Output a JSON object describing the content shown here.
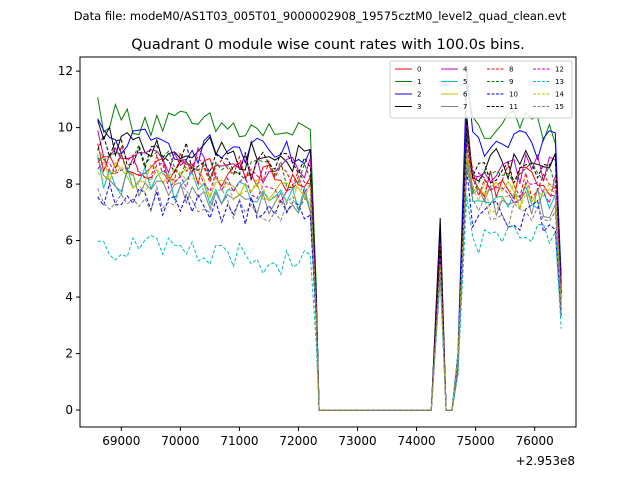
{
  "chart_data": {
    "type": "line",
    "suptitle": "Data file: modeM0/AS1T03_005T01_9000002908_19575cztM0_level2_quad_clean.evt",
    "title": "Quadrant 0 module wise count rates with 100.0s bins.",
    "xlabel": "",
    "ylabel": "",
    "x_offset_label": "+2.953e8",
    "xlim": [
      68300,
      76700
    ],
    "ylim": [
      -0.6,
      12.5
    ],
    "x_ticks": [
      69000,
      70000,
      71000,
      72000,
      73000,
      74000,
      75000,
      76000
    ],
    "x_tick_labels": [
      "69000",
      "70000",
      "71000",
      "72000",
      "73000",
      "74000",
      "75000",
      "76000"
    ],
    "y_ticks": [
      0,
      2,
      4,
      6,
      8,
      10,
      12
    ],
    "y_tick_labels": [
      "0",
      "2",
      "4",
      "6",
      "8",
      "10",
      "12"
    ],
    "legend_position": "top-right",
    "segments": {
      "seg1": [
        68600,
        72200
      ],
      "gap": [
        72350,
        74300
      ],
      "spike": 74400,
      "seg2": [
        74850,
        76450
      ],
      "step": 100
    },
    "series": [
      {
        "name": "0",
        "color": "#ff0000",
        "dash": "solid",
        "mean1": 8.2,
        "mean2": 8.0,
        "spike": 5.6,
        "peak": 9.7
      },
      {
        "name": "1",
        "color": "#008000",
        "dash": "solid",
        "mean1": 9.8,
        "mean2": 10.0,
        "spike": 5.9,
        "peak": 11.5
      },
      {
        "name": "2",
        "color": "#0000ff",
        "dash": "solid",
        "mean1": 9.0,
        "mean2": 9.3,
        "spike": 6.3,
        "peak": 12.0
      },
      {
        "name": "3",
        "color": "#000000",
        "dash": "solid",
        "mean1": 8.9,
        "mean2": 8.7,
        "spike": 6.8,
        "peak": 10.4
      },
      {
        "name": "4",
        "color": "#bf00bf",
        "dash": "solid",
        "mean1": 8.5,
        "mean2": 8.6,
        "spike": 5.9,
        "peak": 10.1
      },
      {
        "name": "5",
        "color": "#00bfbf",
        "dash": "solid",
        "mean1": 7.6,
        "mean2": 7.5,
        "spike": 5.3,
        "peak": 9.0
      },
      {
        "name": "6",
        "color": "#bfbf00",
        "dash": "solid",
        "mean1": 7.8,
        "mean2": 7.7,
        "spike": 5.2,
        "peak": 9.2
      },
      {
        "name": "7",
        "color": "#808080",
        "dash": "solid",
        "mean1": 7.4,
        "mean2": 7.4,
        "spike": 5.0,
        "peak": 8.8
      },
      {
        "name": "8",
        "color": "#ff0000",
        "dash": "dashed",
        "mean1": 8.3,
        "mean2": 8.1,
        "spike": 5.7,
        "peak": 9.6
      },
      {
        "name": "9",
        "color": "#008000",
        "dash": "dashed",
        "mean1": 8.4,
        "mean2": 8.3,
        "spike": 5.5,
        "peak": 9.8
      },
      {
        "name": "10",
        "color": "#0000ff",
        "dash": "dashed",
        "mean1": 7.0,
        "mean2": 6.9,
        "spike": 4.9,
        "peak": 8.5
      },
      {
        "name": "11",
        "color": "#000000",
        "dash": "dashed",
        "mean1": 8.6,
        "mean2": 8.5,
        "spike": 5.8,
        "peak": 10.0
      },
      {
        "name": "12",
        "color": "#bf00bf",
        "dash": "dashed",
        "mean1": 7.9,
        "mean2": 7.9,
        "spike": 5.4,
        "peak": 9.4
      },
      {
        "name": "13",
        "color": "#00bfbf",
        "dash": "dashed",
        "mean1": 5.3,
        "mean2": 6.0,
        "spike": 4.6,
        "peak": 7.6
      },
      {
        "name": "14",
        "color": "#bfbf00",
        "dash": "dashed",
        "mean1": 7.7,
        "mean2": 7.6,
        "spike": 5.1,
        "peak": 9.1
      },
      {
        "name": "15",
        "color": "#808080",
        "dash": "dashed",
        "mean1": 7.1,
        "mean2": 7.0,
        "spike": 4.8,
        "peak": 8.6
      }
    ]
  }
}
